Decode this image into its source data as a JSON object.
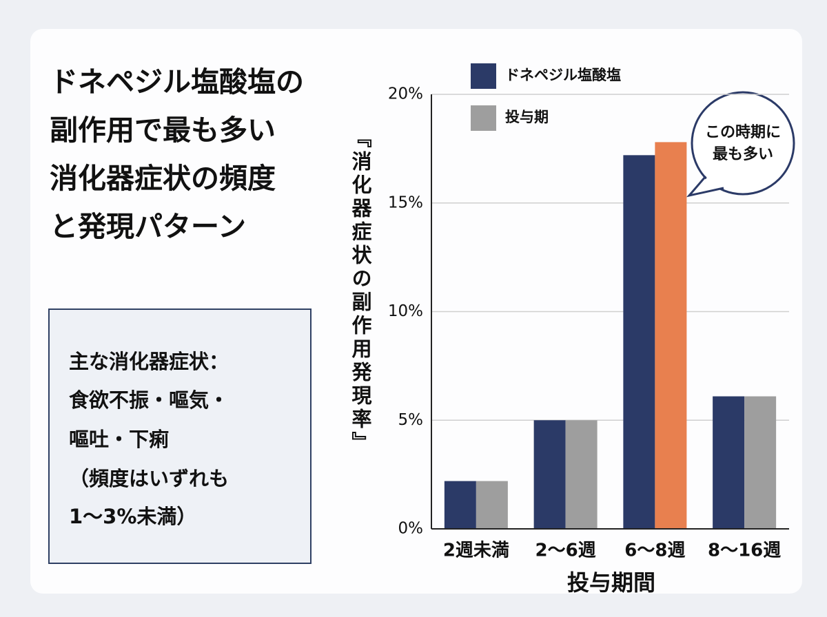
{
  "title": [
    "ドネペジル塩酸塩の",
    "副作用で最も多い",
    "消化器症状の頻度",
    "と発現パターン"
  ],
  "note": [
    "主な消化器症状：",
    "食欲不振・嘔気・",
    "嘔吐・下痢",
    "（頻度はいずれも",
    "1〜3%未満）"
  ],
  "chart_data": {
    "type": "bar",
    "categories": [
      "2週未満",
      "2〜6週",
      "6〜8週",
      "8〜16週"
    ],
    "series": [
      {
        "name": "ドネペジル塩酸塩",
        "color": "#2b3a67",
        "values": [
          2.2,
          5.0,
          17.2,
          6.1
        ]
      },
      {
        "name": "投与期",
        "color": "#9e9e9e",
        "colors": [
          "#9e9e9e",
          "#9e9e9e",
          "#e8804f",
          "#9e9e9e"
        ],
        "values": [
          2.2,
          5.0,
          17.8,
          6.1
        ]
      }
    ],
    "ylim": [
      0,
      20
    ],
    "yticks": [
      {
        "value": 0,
        "label": "0%"
      },
      {
        "value": 5,
        "label": "5%"
      },
      {
        "value": 10,
        "label": "10%"
      },
      {
        "value": 15,
        "label": "15%"
      },
      {
        "value": 20,
        "label": "20%"
      }
    ],
    "ylabel": "『消化器症状の副作用発現率』",
    "xlabel": "投与期間",
    "callout": [
      "この時期に",
      "最も多い"
    ],
    "grid": true
  }
}
